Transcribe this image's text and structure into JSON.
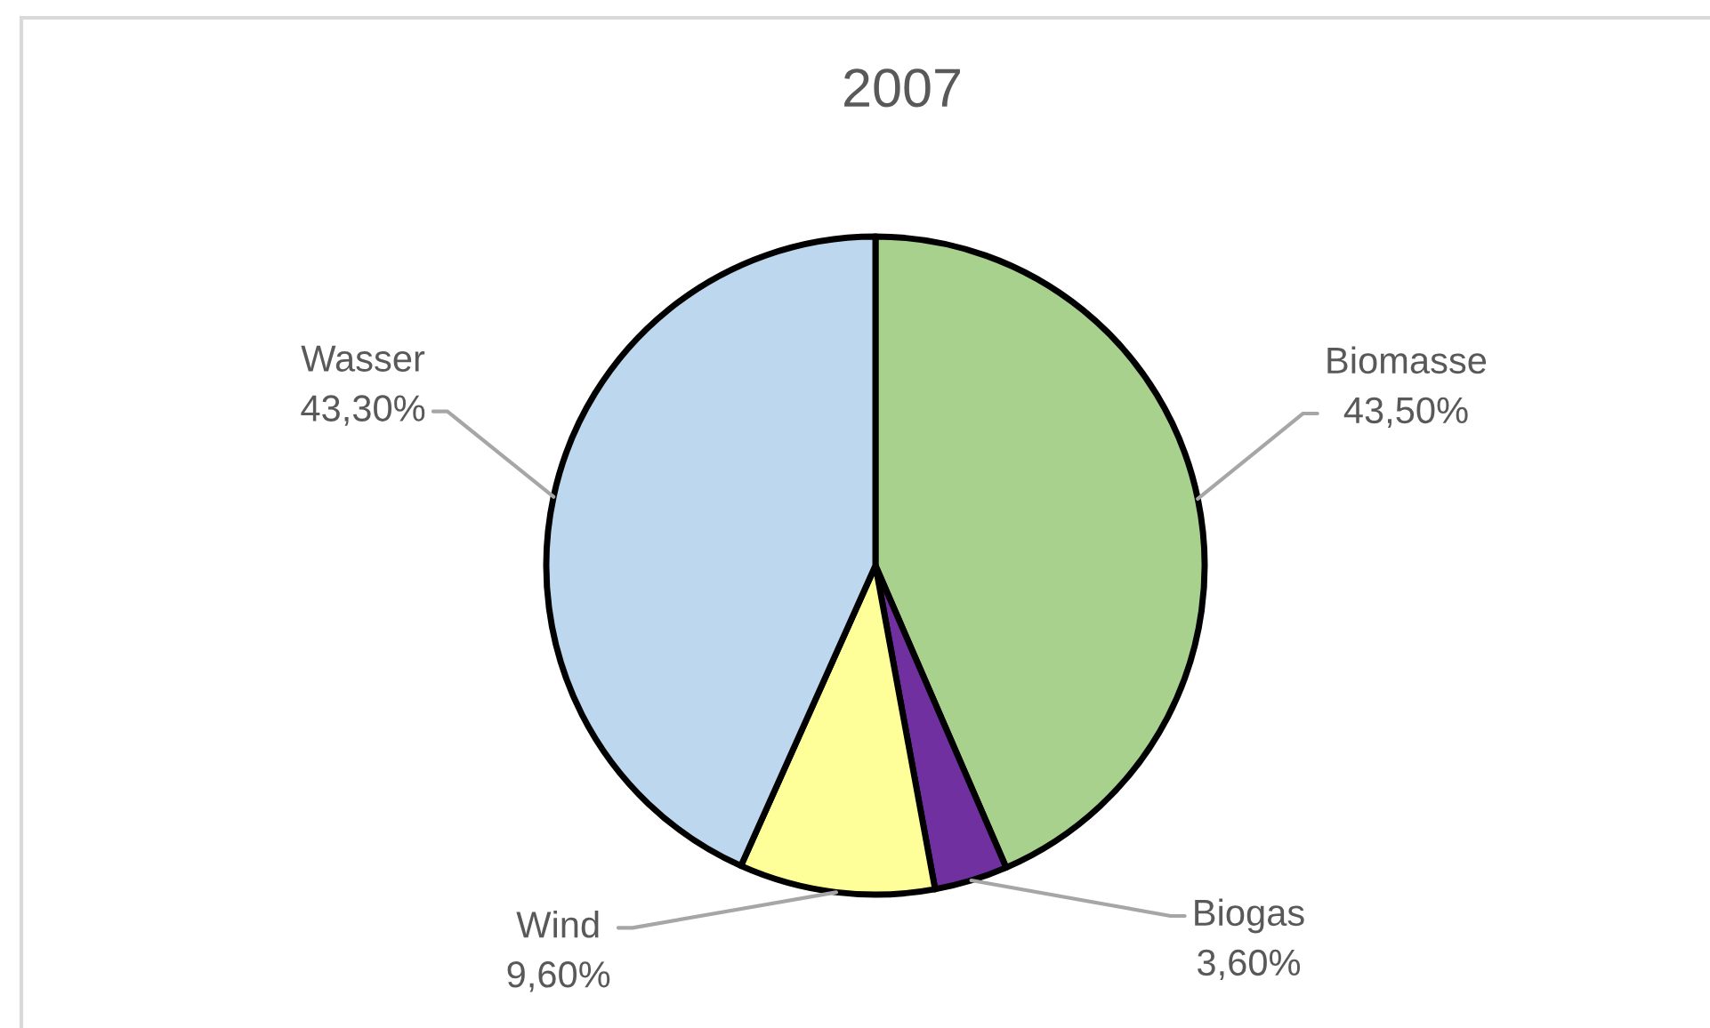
{
  "chart_data": {
    "type": "pie",
    "title": "2007",
    "categories": [
      "Biomasse",
      "Biogas",
      "Wind",
      "Wasser"
    ],
    "values": [
      43.5,
      3.6,
      9.6,
      43.3
    ],
    "colors": [
      "#a9d18e",
      "#7030a0",
      "#ffff99",
      "#bdd7ee"
    ],
    "value_labels": [
      "43,50%",
      "3,60%",
      "9,60%",
      "43,30%"
    ]
  }
}
